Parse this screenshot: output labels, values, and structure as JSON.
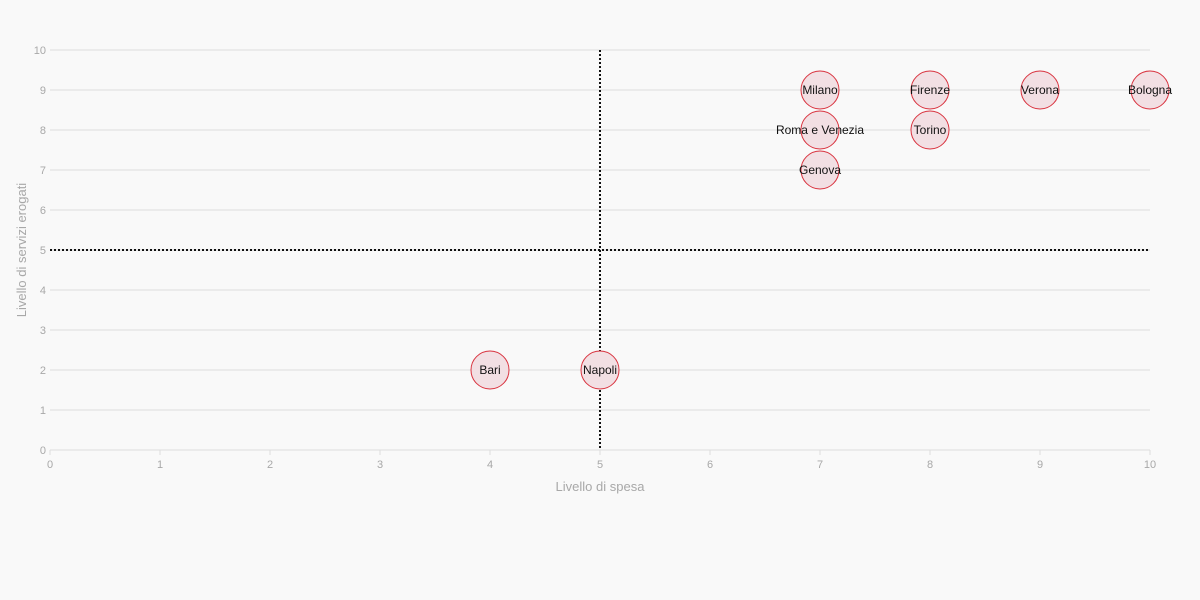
{
  "chart_data": {
    "type": "scatter",
    "title": "",
    "xlabel": "Livello di spesa",
    "ylabel": "Livello di servizi erogati",
    "xlim": [
      0,
      10
    ],
    "ylim": [
      0,
      10
    ],
    "x_ticks": [
      0,
      1,
      2,
      3,
      4,
      5,
      6,
      7,
      8,
      9,
      10
    ],
    "y_ticks": [
      0,
      1,
      2,
      3,
      4,
      5,
      6,
      7,
      8,
      9,
      10
    ],
    "grid": "horizontal",
    "legend": "none",
    "reference_lines": {
      "x": 5,
      "y": 5,
      "style": "dotted"
    },
    "points": [
      {
        "label": "Milano",
        "x": 7,
        "y": 9
      },
      {
        "label": "Firenze",
        "x": 8,
        "y": 9
      },
      {
        "label": "Verona",
        "x": 9,
        "y": 9
      },
      {
        "label": "Bologna",
        "x": 10,
        "y": 9
      },
      {
        "label": "Roma e Venezia",
        "x": 7,
        "y": 8
      },
      {
        "label": "Torino",
        "x": 8,
        "y": 8
      },
      {
        "label": "Genova",
        "x": 7,
        "y": 7
      },
      {
        "label": "Bari",
        "x": 4,
        "y": 2
      },
      {
        "label": "Napoli",
        "x": 5,
        "y": 2
      }
    ],
    "colors": {
      "point_fill": "#f2dfe3",
      "point_stroke": "#d9333f",
      "gridline": "#dddddd",
      "reference_line": "#111111",
      "axis_text": "#a8a8a8",
      "label_text": "#111111"
    }
  }
}
